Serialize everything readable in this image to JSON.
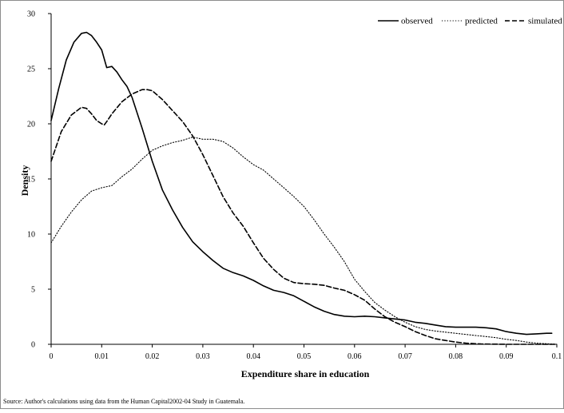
{
  "chart_data": {
    "type": "line",
    "title": "",
    "xlabel": "Expenditure share in education",
    "ylabel": "Density",
    "xlim": [
      0,
      0.1
    ],
    "ylim": [
      0,
      30
    ],
    "x_ticks": [
      0,
      0.01,
      0.02,
      0.03,
      0.04,
      0.05,
      0.06,
      0.07,
      0.08,
      0.09,
      0.1
    ],
    "x_tick_labels": [
      "0",
      "0.01",
      "0.02",
      "0.03",
      "0.04",
      "0.05",
      "0.06",
      "0.07",
      "0.08",
      "0.09",
      "0.1"
    ],
    "y_ticks": [
      0,
      5,
      10,
      15,
      20,
      25,
      30
    ],
    "y_tick_labels": [
      "0",
      "5",
      "10",
      "15",
      "20",
      "25",
      "30"
    ],
    "grid": false,
    "legend_position": "top-right",
    "series": [
      {
        "name": "observed",
        "style": "solid",
        "x": [
          0,
          0.0015,
          0.003,
          0.0045,
          0.006,
          0.007,
          0.008,
          0.009,
          0.01,
          0.011,
          0.012,
          0.013,
          0.014,
          0.015,
          0.016,
          0.018,
          0.02,
          0.022,
          0.024,
          0.026,
          0.028,
          0.03,
          0.032,
          0.034,
          0.036,
          0.038,
          0.04,
          0.042,
          0.044,
          0.046,
          0.048,
          0.05,
          0.052,
          0.054,
          0.056,
          0.058,
          0.06,
          0.062,
          0.064,
          0.066,
          0.068,
          0.07,
          0.072,
          0.074,
          0.076,
          0.078,
          0.08,
          0.082,
          0.084,
          0.086,
          0.088,
          0.09,
          0.092,
          0.094,
          0.096,
          0.098,
          0.099
        ],
        "y": [
          20.3,
          23.2,
          25.8,
          27.4,
          28.2,
          28.3,
          28.0,
          27.4,
          26.7,
          25.1,
          25.2,
          24.7,
          24.0,
          23.4,
          22.4,
          19.6,
          16.6,
          14.0,
          12.2,
          10.6,
          9.3,
          8.4,
          7.6,
          6.9,
          6.5,
          6.2,
          5.8,
          5.3,
          4.9,
          4.7,
          4.4,
          3.9,
          3.4,
          3.0,
          2.7,
          2.55,
          2.5,
          2.55,
          2.5,
          2.4,
          2.3,
          2.2,
          2.0,
          1.9,
          1.75,
          1.6,
          1.55,
          1.55,
          1.55,
          1.5,
          1.4,
          1.15,
          1.0,
          0.9,
          0.95,
          1.0,
          1.0
        ]
      },
      {
        "name": "predicted",
        "style": "dotted",
        "x": [
          0,
          0.002,
          0.004,
          0.006,
          0.008,
          0.01,
          0.012,
          0.014,
          0.016,
          0.018,
          0.02,
          0.022,
          0.024,
          0.026,
          0.028,
          0.03,
          0.032,
          0.034,
          0.036,
          0.038,
          0.04,
          0.042,
          0.044,
          0.046,
          0.048,
          0.05,
          0.052,
          0.054,
          0.056,
          0.058,
          0.06,
          0.062,
          0.064,
          0.066,
          0.068,
          0.07,
          0.072,
          0.074,
          0.076,
          0.078,
          0.08,
          0.082,
          0.084,
          0.086,
          0.088,
          0.09,
          0.092,
          0.094,
          0.096,
          0.098,
          0.1
        ],
        "y": [
          9.2,
          10.7,
          12.0,
          13.1,
          13.9,
          14.2,
          14.4,
          15.2,
          15.9,
          16.8,
          17.6,
          18.0,
          18.3,
          18.5,
          18.8,
          18.6,
          18.6,
          18.4,
          17.8,
          17.0,
          16.3,
          15.8,
          15.0,
          14.2,
          13.4,
          12.5,
          11.3,
          10.0,
          8.8,
          7.5,
          5.9,
          4.8,
          3.8,
          3.1,
          2.5,
          2.0,
          1.6,
          1.35,
          1.2,
          1.1,
          1.0,
          0.9,
          0.8,
          0.7,
          0.6,
          0.45,
          0.35,
          0.2,
          0.1,
          0.05,
          0.0
        ]
      },
      {
        "name": "simulated",
        "style": "dashed",
        "x": [
          0,
          0.002,
          0.004,
          0.006,
          0.007,
          0.008,
          0.009,
          0.01,
          0.0105,
          0.011,
          0.012,
          0.014,
          0.016,
          0.018,
          0.019,
          0.02,
          0.022,
          0.024,
          0.026,
          0.028,
          0.03,
          0.032,
          0.034,
          0.036,
          0.038,
          0.04,
          0.042,
          0.044,
          0.046,
          0.048,
          0.05,
          0.052,
          0.054,
          0.056,
          0.058,
          0.06,
          0.062,
          0.064,
          0.066,
          0.068,
          0.07,
          0.072,
          0.074,
          0.076,
          0.078,
          0.08,
          0.082,
          0.085,
          0.09,
          0.1
        ],
        "y": [
          16.6,
          19.3,
          20.8,
          21.5,
          21.4,
          20.9,
          20.3,
          20.0,
          19.9,
          20.2,
          20.9,
          22.0,
          22.7,
          23.1,
          23.1,
          23.0,
          22.2,
          21.2,
          20.2,
          18.9,
          17.2,
          15.3,
          13.4,
          11.9,
          10.7,
          9.2,
          7.8,
          6.8,
          6.0,
          5.6,
          5.5,
          5.45,
          5.35,
          5.1,
          4.9,
          4.5,
          4.0,
          3.2,
          2.5,
          2.0,
          1.6,
          1.15,
          0.8,
          0.5,
          0.35,
          0.2,
          0.1,
          0.03,
          0.0,
          0.0
        ]
      }
    ],
    "source_note": "Source: Author's calculations using data from the Human Capital2002-04 Study in Guatemala."
  }
}
